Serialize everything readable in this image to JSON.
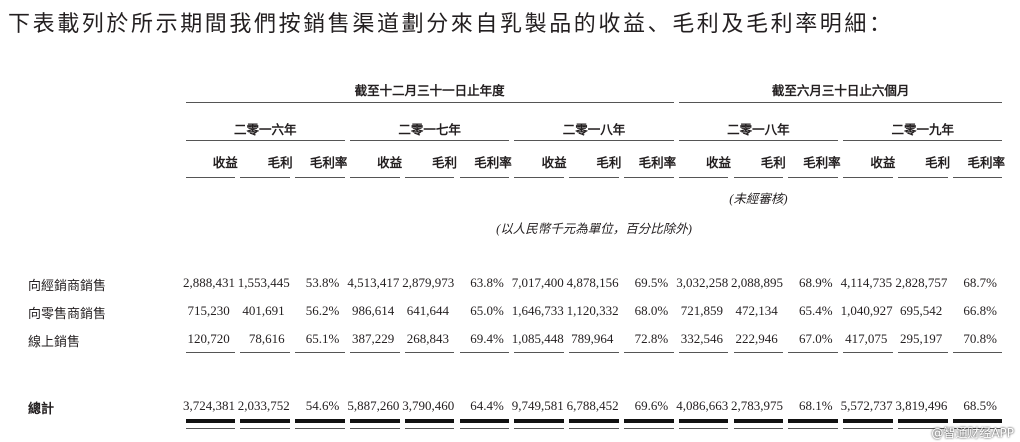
{
  "title": "下表載列於所示期間我們按銷售渠道劃分來自乳製品的收益、毛利及毛利率明細：",
  "period_groups": [
    {
      "label": "截至十二月三十一日止年度",
      "span": 9
    },
    {
      "label": "截至六月三十日止六個月",
      "span": 6
    }
  ],
  "years": [
    "二零一六年",
    "二零一七年",
    "二零一八年",
    "二零一八年",
    "二零一九年"
  ],
  "column_headers": [
    "收益",
    "毛利",
    "毛利率"
  ],
  "unaudited_note": "(未經審核)",
  "unit_note": "(以人民幣千元為單位，百分比除外)",
  "rows": [
    {
      "label": "向經銷商銷售",
      "values": [
        "2,888,431",
        "1,553,445",
        "53.8%",
        "4,513,417",
        "2,879,973",
        "63.8%",
        "7,017,400",
        "4,878,156",
        "69.5%",
        "3,032,258",
        "2,088,895",
        "68.9%",
        "4,114,735",
        "2,828,757",
        "68.7%"
      ]
    },
    {
      "label": "向零售商銷售",
      "values": [
        "715,230",
        "401,691",
        "56.2%",
        "986,614",
        "641,644",
        "65.0%",
        "1,646,733",
        "1,120,332",
        "68.0%",
        "721,859",
        "472,134",
        "65.4%",
        "1,040,927",
        "695,542",
        "66.8%"
      ]
    },
    {
      "label": "線上銷售",
      "values": [
        "120,720",
        "78,616",
        "65.1%",
        "387,229",
        "268,843",
        "69.4%",
        "1,085,448",
        "789,964",
        "72.8%",
        "332,546",
        "222,946",
        "67.0%",
        "417,075",
        "295,197",
        "70.8%"
      ]
    }
  ],
  "total": {
    "label": "總計",
    "values": [
      "3,724,381",
      "2,033,752",
      "54.6%",
      "5,887,260",
      "3,790,460",
      "64.4%",
      "9,749,581",
      "6,788,452",
      "69.6%",
      "4,086,663",
      "2,783,975",
      "68.1%",
      "5,572,737",
      "3,819,496",
      "68.5%"
    ]
  },
  "watermark": "@智通财经APP"
}
